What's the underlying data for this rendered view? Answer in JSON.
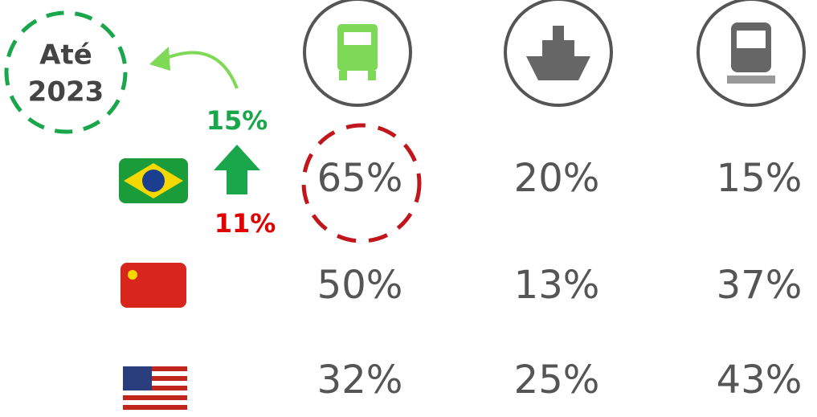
{
  "badge": [
    "Até",
    "2023"
  ],
  "annotation": {
    "top": "15%",
    "bottom": "11%"
  },
  "table": {
    "rows": [
      [
        "65%",
        "20%",
        "15%"
      ],
      [
        "50%",
        "13%",
        "37%"
      ],
      [
        "32%",
        "25%",
        "43%"
      ]
    ]
  }
}
